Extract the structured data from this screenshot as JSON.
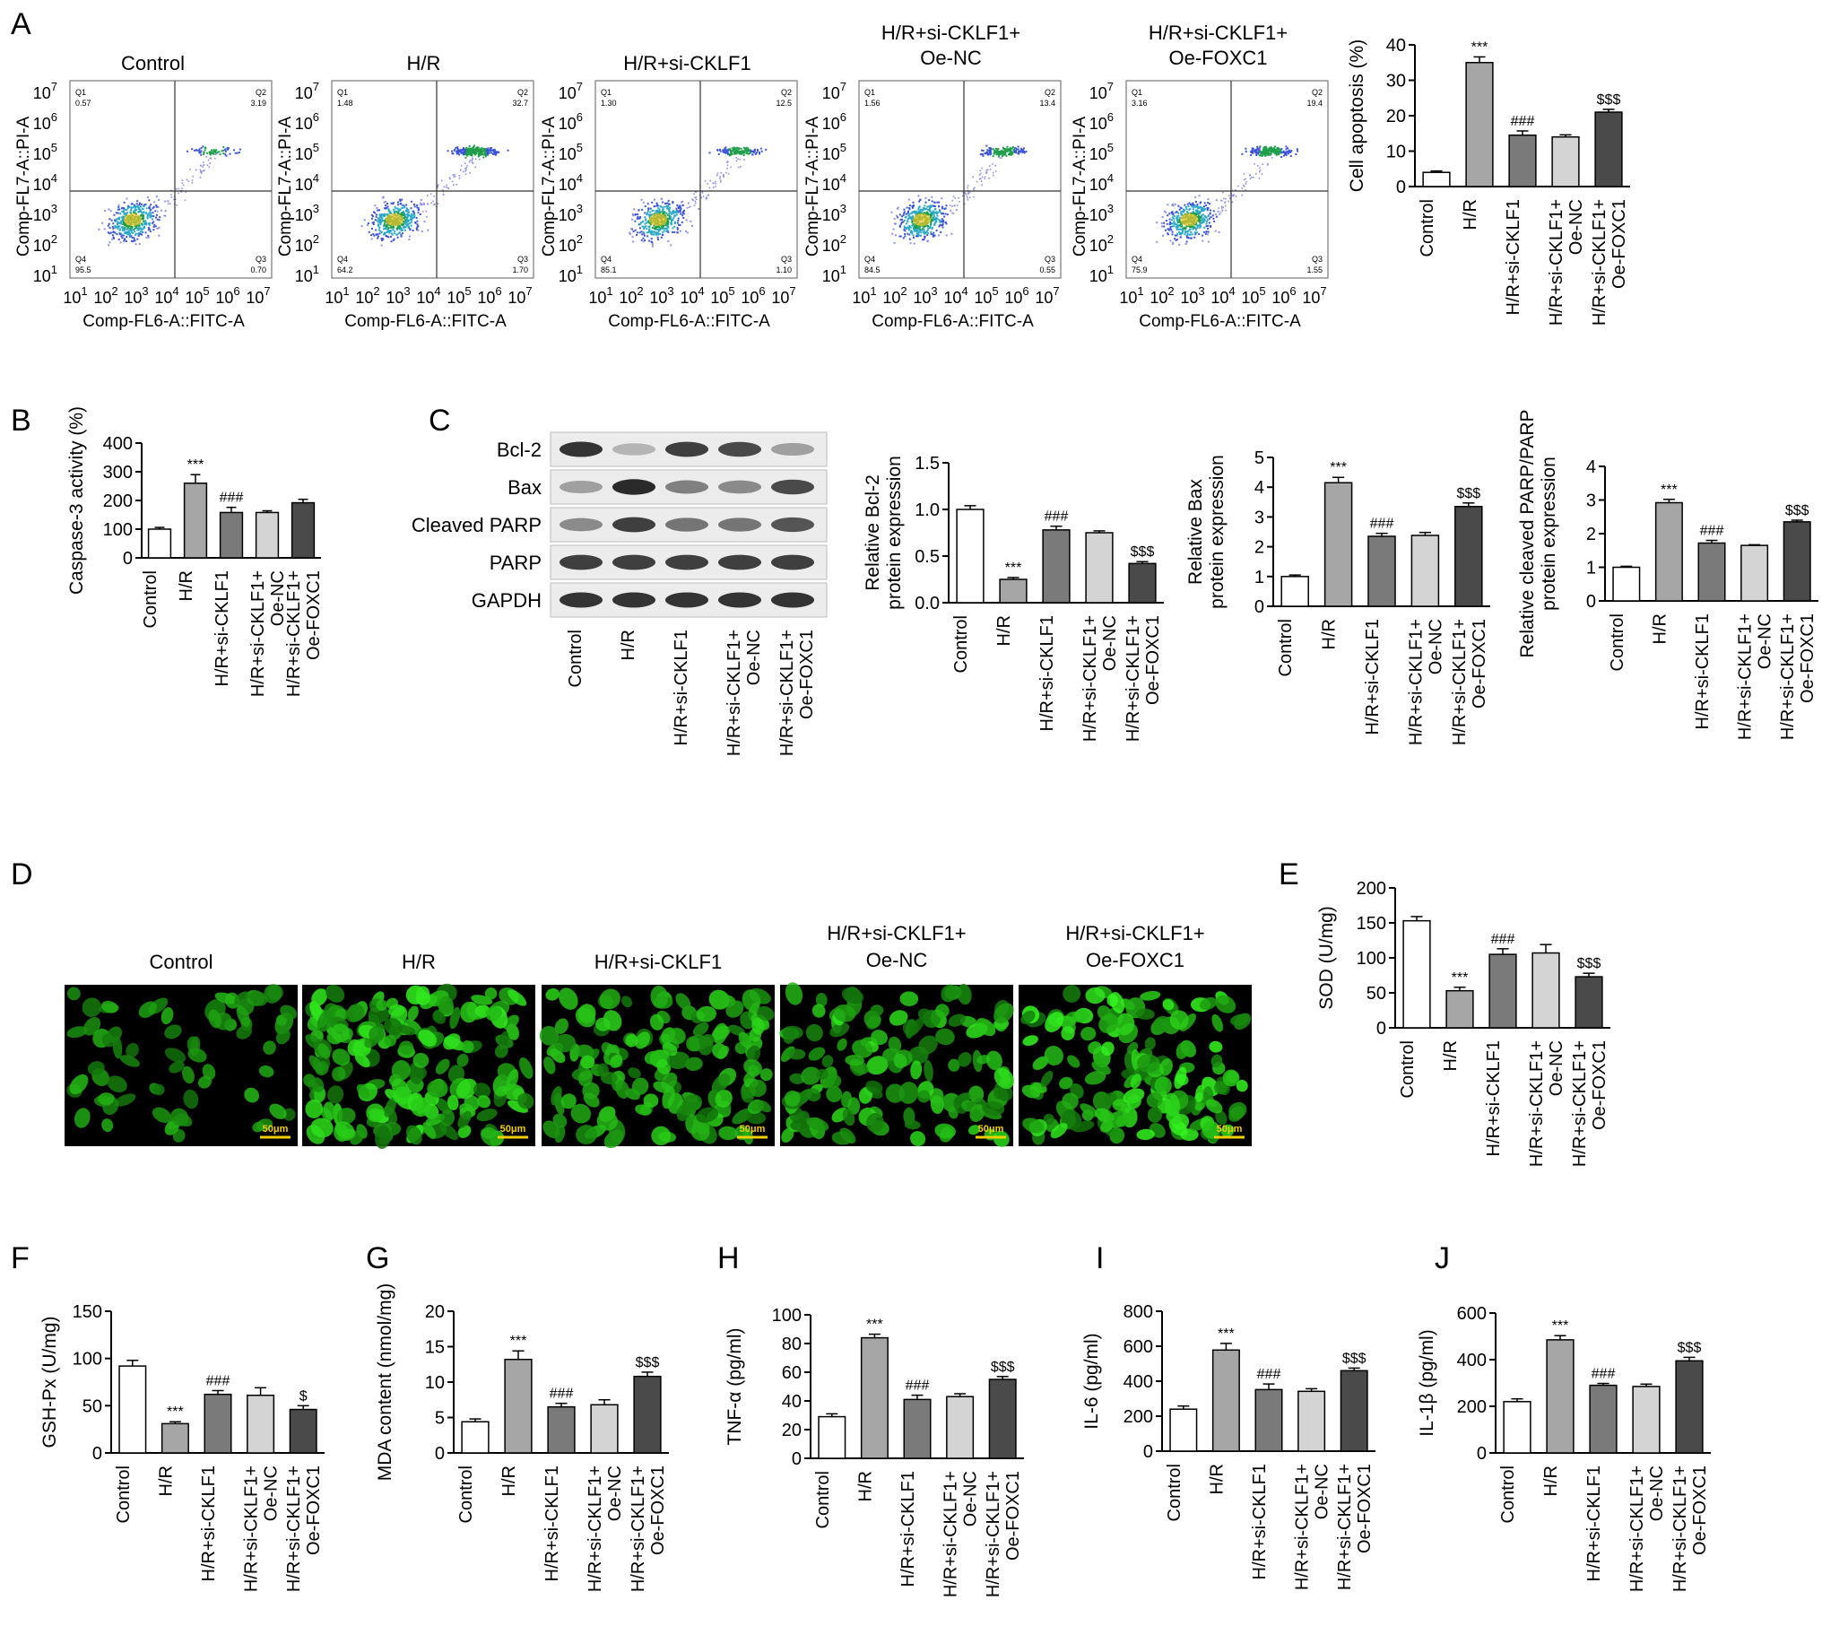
{
  "panel_letters": [
    "A",
    "B",
    "C",
    "D",
    "E",
    "F",
    "G",
    "H",
    "I",
    "J"
  ],
  "group_labels": [
    "Control",
    "H/R",
    "H/R+si-CKLF1",
    "H/R+si-CKLF1+\nOe-NC",
    "H/R+si-CKLF1+\nOe-FOXC1"
  ],
  "group_labels_flow": [
    "Control",
    "H/R",
    "H/R+si-CKLF1",
    "H/R+si-CKLF1+\nOe-NC",
    "H/R+si-CKLF1+\nOe-FOXC1"
  ],
  "bar_colors": [
    "#ffffff",
    "#a6a6a6",
    "#7a7a7a",
    "#d4d4d4",
    "#4a4a4a"
  ],
  "flow": {
    "x_axis_label": "Comp-FL6-A::FITC-A",
    "y_axis_label": "Comp-FL7-A::PI-A",
    "tick_exponents": [
      "1",
      "2",
      "3",
      "4",
      "5",
      "6",
      "7"
    ],
    "tick_base": "10",
    "plots": [
      {
        "title": "Control",
        "q1": "0.57",
        "q2": "3.19",
        "q3": "0.70",
        "q4": "95.5"
      },
      {
        "title": "H/R",
        "q1": "1.48",
        "q2": "32.7",
        "q3": "1.70",
        "q4": "64.2"
      },
      {
        "title": "H/R+si-CKLF1",
        "q1": "1.30",
        "q2": "12.5",
        "q3": "1.10",
        "q4": "85.1"
      },
      {
        "title": "H/R+si-CKLF1+\nOe-NC",
        "q1": "1.56",
        "q2": "13.4",
        "q3": "0.55",
        "q4": "84.5"
      },
      {
        "title": "H/R+si-CKLF1+\nOe-FOXC1",
        "q1": "3.16",
        "q2": "19.4",
        "q3": "1.55",
        "q4": "75.9"
      }
    ],
    "quadrant_names": [
      "Q1",
      "Q2",
      "Q3",
      "Q4"
    ]
  },
  "western_blot": {
    "band_labels": [
      "Bcl-2",
      "Bax",
      "Cleaved PARP",
      "PARP",
      "GAPDH"
    ],
    "band_intensity": [
      [
        0.85,
        0.25,
        0.8,
        0.75,
        0.35
      ],
      [
        0.35,
        0.9,
        0.5,
        0.45,
        0.75
      ],
      [
        0.45,
        0.8,
        0.55,
        0.55,
        0.7
      ],
      [
        0.8,
        0.8,
        0.8,
        0.8,
        0.8
      ],
      [
        0.85,
        0.85,
        0.85,
        0.85,
        0.85
      ]
    ]
  },
  "fluorescence": {
    "titles": [
      "Control",
      "H/R",
      "H/R+si-CKLF1",
      "H/R+si-CKLF1+\nOe-NC",
      "H/R+si-CKLF1+\nOe-FOXC1"
    ],
    "scale_label": "50μm",
    "cell_color": "#22e016"
  },
  "chart_data": [
    {
      "id": "A",
      "type": "bar",
      "ylabel": "Cell apoptosis (%)",
      "ylim": [
        0,
        40
      ],
      "yticks": [
        0,
        10,
        20,
        30,
        40
      ],
      "values": [
        4,
        35,
        14.5,
        14,
        21
      ],
      "errors": [
        0.4,
        1.6,
        1.2,
        0.6,
        0.8
      ],
      "annotations": [
        "",
        "***",
        "###",
        "",
        "$$$"
      ]
    },
    {
      "id": "B",
      "type": "bar",
      "ylabel": "Caspase-3 activity (%)",
      "ylim": [
        0,
        400
      ],
      "yticks": [
        0,
        100,
        200,
        300,
        400
      ],
      "values": [
        100,
        260,
        158,
        158,
        192
      ],
      "errors": [
        6,
        30,
        18,
        6,
        12
      ],
      "annotations": [
        "",
        "***",
        "###",
        "",
        ""
      ]
    },
    {
      "id": "C1",
      "type": "bar",
      "ylabel": "Relative Bcl-2\nprotein expression",
      "ylim": [
        0,
        1.5
      ],
      "yticks": [
        0.0,
        0.5,
        1.0,
        1.5
      ],
      "values": [
        1.0,
        0.25,
        0.78,
        0.75,
        0.42
      ],
      "errors": [
        0.04,
        0.02,
        0.04,
        0.02,
        0.02
      ],
      "annotations": [
        "",
        "***",
        "###",
        "",
        "$$$"
      ]
    },
    {
      "id": "C2",
      "type": "bar",
      "ylabel": "Relative Bax\nprotein expression",
      "ylim": [
        0,
        5
      ],
      "yticks": [
        0,
        1,
        2,
        3,
        4,
        5
      ],
      "values": [
        1.0,
        4.15,
        2.35,
        2.38,
        3.35
      ],
      "errors": [
        0.05,
        0.18,
        0.1,
        0.1,
        0.12
      ],
      "annotations": [
        "",
        "***",
        "###",
        "",
        "$$$"
      ]
    },
    {
      "id": "C3",
      "type": "bar",
      "ylabel": "Relative cleaved PARP/PARP\nprotein expression",
      "ylim": [
        0,
        4
      ],
      "yticks": [
        0,
        1,
        2,
        3,
        4
      ],
      "values": [
        1.0,
        2.92,
        1.72,
        1.65,
        2.35
      ],
      "errors": [
        0.03,
        0.1,
        0.08,
        0.02,
        0.05
      ],
      "annotations": [
        "",
        "***",
        "###",
        "",
        "$$$"
      ]
    },
    {
      "id": "E",
      "type": "bar",
      "ylabel": "SOD (U/mg)",
      "ylim": [
        0,
        200
      ],
      "yticks": [
        0,
        50,
        100,
        150,
        200
      ],
      "values": [
        153,
        53,
        105,
        107,
        73
      ],
      "errors": [
        6,
        5,
        8,
        12,
        5
      ],
      "annotations": [
        "",
        "***",
        "###",
        "",
        "$$$"
      ]
    },
    {
      "id": "F",
      "type": "bar",
      "ylabel": "GSH-Px (U/mg)",
      "ylim": [
        0,
        150
      ],
      "yticks": [
        0,
        50,
        100,
        150
      ],
      "values": [
        92,
        31,
        62,
        61,
        46
      ],
      "errors": [
        6,
        2,
        4,
        8,
        4
      ],
      "annotations": [
        "",
        "***",
        "###",
        "",
        "$"
      ]
    },
    {
      "id": "G",
      "type": "bar",
      "ylabel": "MDA content (nmol/mg)",
      "ylim": [
        0,
        20
      ],
      "yticks": [
        0,
        5,
        10,
        15,
        20
      ],
      "values": [
        4.4,
        13.2,
        6.5,
        6.8,
        10.8
      ],
      "errors": [
        0.4,
        1.2,
        0.5,
        0.7,
        0.6
      ],
      "annotations": [
        "",
        "***",
        "###",
        "",
        "$$$"
      ]
    },
    {
      "id": "H",
      "type": "bar",
      "ylabel": "TNF-α (pg/ml)",
      "ylim": [
        0,
        100
      ],
      "yticks": [
        0,
        20,
        40,
        60,
        80,
        100
      ],
      "values": [
        29,
        84,
        41,
        43,
        55
      ],
      "errors": [
        2,
        2.5,
        3,
        2,
        2
      ],
      "annotations": [
        "",
        "***",
        "###",
        "",
        "$$$"
      ]
    },
    {
      "id": "I",
      "type": "bar",
      "ylabel": "IL-6 (pg/ml)",
      "ylim": [
        0,
        800
      ],
      "yticks": [
        0,
        200,
        400,
        600,
        800
      ],
      "values": [
        240,
        578,
        352,
        342,
        460
      ],
      "errors": [
        18,
        38,
        32,
        15,
        15
      ],
      "annotations": [
        "",
        "***",
        "###",
        "",
        "$$$"
      ]
    },
    {
      "id": "J",
      "type": "bar",
      "ylabel": "IL-1β (pg/ml)",
      "ylim": [
        0,
        600
      ],
      "yticks": [
        0,
        200,
        400,
        600
      ],
      "values": [
        220,
        485,
        290,
        285,
        395
      ],
      "errors": [
        12,
        18,
        8,
        10,
        15
      ],
      "annotations": [
        "",
        "***",
        "###",
        "",
        "$$$"
      ]
    }
  ]
}
